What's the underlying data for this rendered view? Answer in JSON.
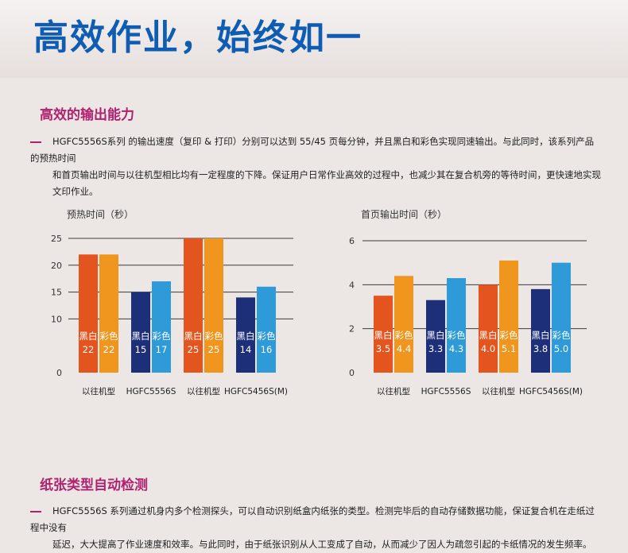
{
  "header": {
    "title": "高效作业，始终如一"
  },
  "section1": {
    "heading": "高效的输出能力",
    "line1": "HGFC5556S系列 的输出速度（复印 & 打印）分别可以达到 55/45 页每分钟，并且黑白和彩色实现同速输出。与此同时，该系列产品的预热时间",
    "line2": "和首页输出时间与以往机型相比均有一定程度的下降。保证用户日常作业高效的过程中，也减少其在复合机旁的等待时间，更快速地实现文印作业。"
  },
  "section2": {
    "heading": "纸张类型自动检测",
    "line1": "HGFC5556S 系列通过机身内多个检测探头，可以自动识别纸盒内纸张的类型。检测完毕后的自动存储数据功能，保证复合机在走纸过程中没有",
    "line2": "延迟，大大提高了作业速度和效率。与此同时，由于纸张识别从人工变成了自动，从而减少了因人为疏忽引起的卡纸情况的发生频率。"
  },
  "colors": {
    "old_bw": "#e3541e",
    "old_color": "#f0961e",
    "new_bw": "#1e2f7a",
    "new_color": "#2e9ad8"
  },
  "chart_data": [
    {
      "type": "bar",
      "title": "预热时间（秒）",
      "ylim": [
        0,
        25
      ],
      "yticks": [
        "0",
        "10",
        "15",
        "20",
        "25"
      ],
      "categories": [
        "以往机型",
        "HGFC5556S",
        "以往机型",
        "HGFC5456S(M)"
      ],
      "groups": [
        {
          "category": "以往机型",
          "kind": "old",
          "bars": [
            {
              "label": "黑白",
              "value": 22,
              "text": "22"
            },
            {
              "label": "彩色",
              "value": 22,
              "text": "22"
            }
          ]
        },
        {
          "category": "HGFC5556S",
          "kind": "new",
          "bars": [
            {
              "label": "黑白",
              "value": 15,
              "text": "15"
            },
            {
              "label": "彩色",
              "value": 17,
              "text": "17"
            }
          ]
        },
        {
          "category": "以往机型",
          "kind": "old",
          "bars": [
            {
              "label": "黑白",
              "value": 25,
              "text": "25"
            },
            {
              "label": "彩色",
              "value": 25,
              "text": "25"
            }
          ]
        },
        {
          "category": "HGFC5456S(M)",
          "kind": "new",
          "bars": [
            {
              "label": "黑白",
              "value": 14,
              "text": "14"
            },
            {
              "label": "彩色",
              "value": 16,
              "text": "16"
            }
          ]
        }
      ]
    },
    {
      "type": "bar",
      "title": "首页输出时间（秒）",
      "ylim": [
        0,
        6
      ],
      "yticks": [
        "0",
        "2",
        "4",
        "6"
      ],
      "categories": [
        "以往机型",
        "HGFC5556S",
        "以往机型",
        "HGFC5456S(M)"
      ],
      "groups": [
        {
          "category": "以往机型",
          "kind": "old",
          "bars": [
            {
              "label": "黑白",
              "value": 3.5,
              "text": "3.5"
            },
            {
              "label": "彩色",
              "value": 4.4,
              "text": "4.4"
            }
          ]
        },
        {
          "category": "HGFC5556S",
          "kind": "new",
          "bars": [
            {
              "label": "黑白",
              "value": 3.3,
              "text": "3.3"
            },
            {
              "label": "彩色",
              "value": 4.3,
              "text": "4.3"
            }
          ]
        },
        {
          "category": "以往机型",
          "kind": "old",
          "bars": [
            {
              "label": "黑白",
              "value": 4.0,
              "text": "4.0"
            },
            {
              "label": "彩色",
              "value": 5.1,
              "text": "5.1"
            }
          ]
        },
        {
          "category": "HGFC5456S(M)",
          "kind": "new",
          "bars": [
            {
              "label": "黑白",
              "value": 3.8,
              "text": "3.8"
            },
            {
              "label": "彩色",
              "value": 5.0,
              "text": "5.0"
            }
          ]
        }
      ]
    }
  ]
}
